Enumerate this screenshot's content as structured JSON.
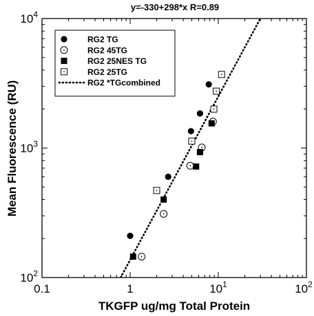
{
  "chart_data": {
    "type": "scatter",
    "annotation": "y=-330+298*x  R=0.89",
    "xlabel": "TKGFP ug/mg Total Protein",
    "ylabel": "Mean Fluorescence (RU)",
    "x_scale": "log",
    "y_scale": "log",
    "xlim": [
      0.1,
      100
    ],
    "ylim": [
      100,
      10000
    ],
    "x_ticks": [
      {
        "value": 0.1,
        "base": "0.1",
        "exp": ""
      },
      {
        "value": 1,
        "base": "1",
        "exp": ""
      },
      {
        "value": 10,
        "base": "10",
        "exp": "1"
      },
      {
        "value": 100,
        "base": "10",
        "exp": "2"
      }
    ],
    "y_ticks": [
      {
        "value": 100,
        "base": "10",
        "exp": "2"
      },
      {
        "value": 1000,
        "base": "10",
        "exp": "3"
      },
      {
        "value": 10000,
        "base": "10",
        "exp": "4"
      }
    ],
    "grid": false,
    "legend_position": "top-left",
    "series": [
      {
        "name": "RG2 TG",
        "marker": "filled-circle",
        "points": [
          [
            1.0,
            210
          ],
          [
            2.7,
            600
          ],
          [
            4.9,
            1350
          ],
          [
            6.2,
            1850
          ],
          [
            7.8,
            3100
          ]
        ]
      },
      {
        "name": "RG2 45TG",
        "marker": "open-circle",
        "points": [
          [
            1.35,
            145
          ],
          [
            2.4,
            310
          ],
          [
            4.8,
            730
          ],
          [
            6.5,
            1010
          ],
          [
            8.7,
            1600
          ]
        ]
      },
      {
        "name": "RG2 25NES TG",
        "marker": "filled-square",
        "points": [
          [
            1.08,
            145
          ],
          [
            2.4,
            400
          ],
          [
            5.6,
            720
          ],
          [
            6.2,
            930
          ],
          [
            8.4,
            1550
          ]
        ]
      },
      {
        "name": "RG2 25TG",
        "marker": "open-square",
        "points": [
          [
            2.0,
            470
          ],
          [
            5.0,
            1130
          ],
          [
            8.9,
            2000
          ],
          [
            9.5,
            2750
          ],
          [
            10.9,
            3700
          ]
        ]
      },
      {
        "name": "RG2 *TGcombined",
        "marker": "dotted-line",
        "points": [
          [
            0.78,
            100
          ],
          [
            30,
            10000
          ]
        ]
      }
    ]
  }
}
